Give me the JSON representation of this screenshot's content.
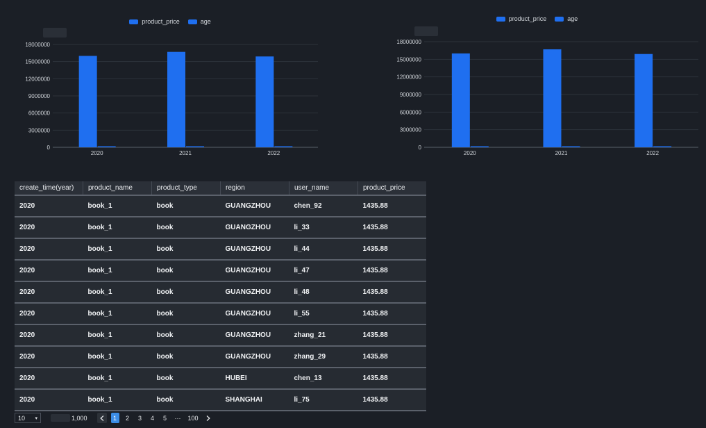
{
  "legend": [
    {
      "label": "product_price",
      "color": "#1f6ff0"
    },
    {
      "label": "age",
      "color": "#1f6ff0"
    }
  ],
  "chart_data": [
    {
      "type": "bar",
      "categories": [
        "2020",
        "2021",
        "2022"
      ],
      "series": [
        {
          "name": "product_price",
          "values": [
            16000000,
            16700000,
            15900000
          ]
        },
        {
          "name": "age",
          "values": [
            40000,
            40000,
            40000
          ]
        }
      ],
      "yticks": [
        "0",
        "3000000",
        "6000000",
        "9000000",
        "12000000",
        "15000000",
        "18000000"
      ],
      "ylim": [
        0,
        18000000
      ],
      "grid": true,
      "legend_position": "top-center"
    },
    {
      "type": "bar",
      "categories": [
        "2020",
        "2021",
        "2022"
      ],
      "series": [
        {
          "name": "product_price",
          "values": [
            16000000,
            16700000,
            15900000
          ]
        },
        {
          "name": "age",
          "values": [
            40000,
            40000,
            40000
          ]
        }
      ],
      "yticks": [
        "0",
        "3000000",
        "6000000",
        "9000000",
        "12000000",
        "15000000",
        "18000000"
      ],
      "ylim": [
        0,
        18000000
      ],
      "grid": true,
      "legend_position": "top-center"
    }
  ],
  "table": {
    "headers": [
      "create_time(year)",
      "product_name",
      "product_type",
      "region",
      "user_name",
      "product_price"
    ],
    "rows": [
      [
        "2020",
        "book_1",
        "book",
        "GUANGZHOU",
        "chen_92",
        "1435.88"
      ],
      [
        "2020",
        "book_1",
        "book",
        "GUANGZHOU",
        "li_33",
        "1435.88"
      ],
      [
        "2020",
        "book_1",
        "book",
        "GUANGZHOU",
        "li_44",
        "1435.88"
      ],
      [
        "2020",
        "book_1",
        "book",
        "GUANGZHOU",
        "li_47",
        "1435.88"
      ],
      [
        "2020",
        "book_1",
        "book",
        "GUANGZHOU",
        "li_48",
        "1435.88"
      ],
      [
        "2020",
        "book_1",
        "book",
        "GUANGZHOU",
        "li_55",
        "1435.88"
      ],
      [
        "2020",
        "book_1",
        "book",
        "GUANGZHOU",
        "zhang_21",
        "1435.88"
      ],
      [
        "2020",
        "book_1",
        "book",
        "GUANGZHOU",
        "zhang_29",
        "1435.88"
      ],
      [
        "2020",
        "book_1",
        "book",
        "HUBEI",
        "chen_13",
        "1435.88"
      ],
      [
        "2020",
        "book_1",
        "book",
        "SHANGHAI",
        "li_75",
        "1435.88"
      ]
    ]
  },
  "pagination": {
    "page_size": "10",
    "total": "1,000",
    "pages": [
      "1",
      "2",
      "3",
      "4",
      "5"
    ],
    "ellipsis": "···",
    "last_page": "100",
    "current": "1",
    "prev_icon": "chevron-left-icon",
    "next_icon": "chevron-right-icon"
  }
}
